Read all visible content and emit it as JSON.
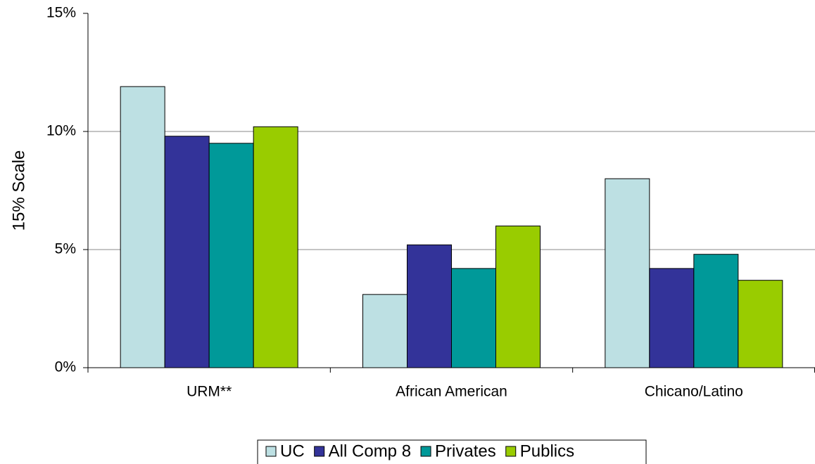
{
  "chart_data": {
    "type": "bar",
    "y_label": "15% Scale",
    "categories": [
      "URM**",
      "African American",
      "Chicano/Latino"
    ],
    "series": [
      {
        "name": "UC",
        "color": "#bde0e3",
        "values": [
          11.9,
          3.1,
          8.0
        ]
      },
      {
        "name": "All Comp 8",
        "color": "#333399",
        "values": [
          9.8,
          5.2,
          4.2
        ]
      },
      {
        "name": "Privates",
        "color": "#009999",
        "values": [
          9.5,
          4.2,
          4.8
        ]
      },
      {
        "name": "Publics",
        "color": "#99cc00",
        "values": [
          10.2,
          6.0,
          3.7
        ]
      }
    ],
    "ylim": [
      0,
      15
    ],
    "yticks": [
      {
        "value": 0,
        "label": "0%"
      },
      {
        "value": 5,
        "label": "5%"
      },
      {
        "value": 10,
        "label": "10%"
      },
      {
        "value": 15,
        "label": "15%"
      }
    ],
    "grid": true,
    "legend": "bottom"
  }
}
